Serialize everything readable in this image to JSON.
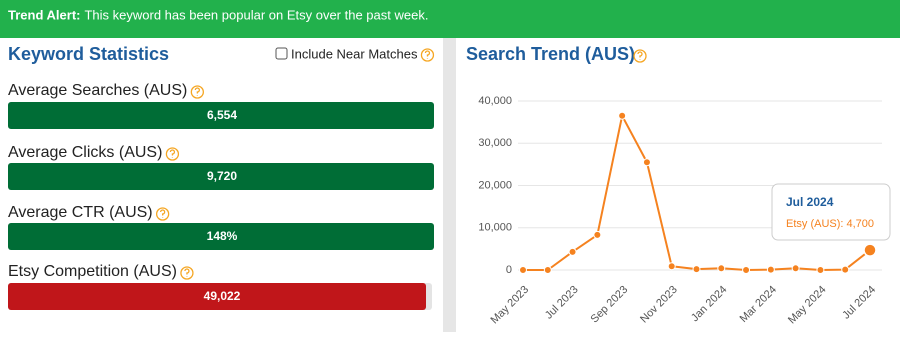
{
  "banner": {
    "label": "Trend Alert:",
    "text": "This keyword has been popular on Etsy over the past week."
  },
  "keyword_statistics": {
    "title": "Keyword Statistics",
    "checkbox_label": "Include Near Matches",
    "checked": false,
    "stats": [
      {
        "label": "Average Searches (AUS)",
        "value": "6,554",
        "color": "#006d36"
      },
      {
        "label": "Average Clicks (AUS)",
        "value": "9,720",
        "color": "#006d36"
      },
      {
        "label": "Average CTR (AUS)",
        "value": "148%",
        "color": "#006d36"
      },
      {
        "label": "Etsy Competition (AUS)",
        "value": "49,022",
        "color": "#c0161a"
      }
    ]
  },
  "search_trend": {
    "title": "Search Trend (AUS)",
    "chart": {
      "type": "line",
      "x": [
        "May 2023",
        null,
        "Jul 2023",
        null,
        "Sep 2023",
        null,
        "Nov 2023",
        null,
        "Jan 2024",
        null,
        "Mar 2024",
        null,
        "May 2024",
        null,
        "Jul 2024"
      ],
      "series": [
        {
          "color": "#f5821f",
          "values": [
            0,
            0,
            4300,
            8300,
            36500,
            25500,
            900,
            200,
            400,
            0,
            100,
            400,
            0,
            100,
            4700
          ]
        }
      ],
      "ylim": [
        0,
        40000
      ],
      "yticks": [
        0,
        {
          "value": 10000,
          "label": "10,000"
        },
        {
          "value": 20000,
          "label": "20,000"
        },
        {
          "value": 30000,
          "label": "30,000"
        },
        {
          "value": 40000,
          "label": "40,000"
        }
      ],
      "grid": true
    },
    "tooltip": {
      "title": "Jul 2024",
      "text": "Etsy (AUS): 4,700"
    }
  }
}
